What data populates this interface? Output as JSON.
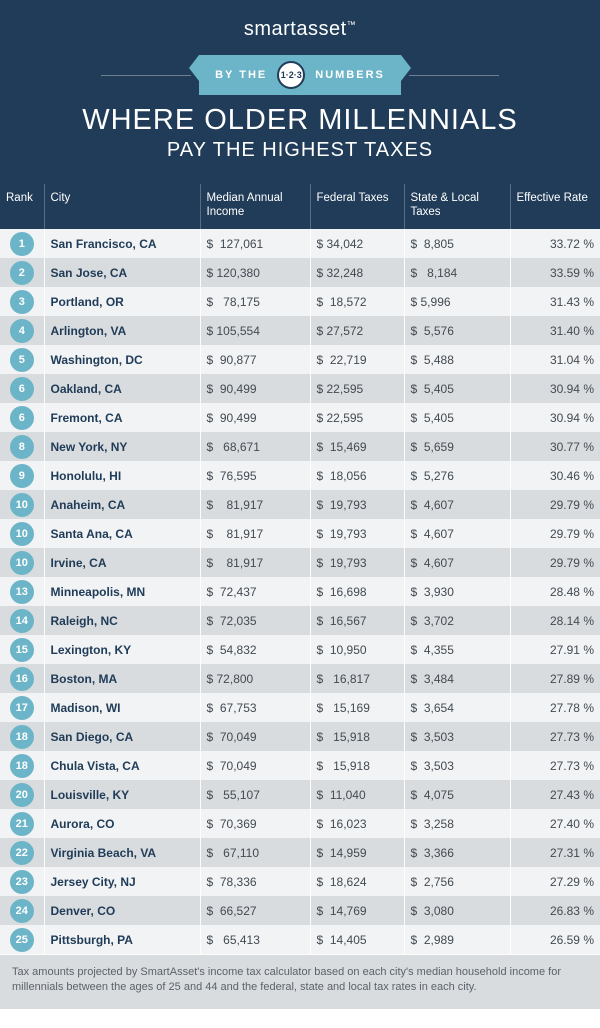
{
  "brand": {
    "part1": "smart",
    "part2": "asset",
    "tm": "™"
  },
  "ribbon": {
    "left": "BY THE",
    "circle": "1·2·3",
    "right": "NUMBERS"
  },
  "heading": {
    "title": "WHERE OLDER MILLENNIALS",
    "subtitle": "PAY THE HIGHEST TAXES"
  },
  "columns": {
    "rank": "Rank",
    "city": "City",
    "income": "Median Annual Income",
    "federal": "Federal Taxes",
    "state": "State & Local Taxes",
    "rate": "Effective Rate"
  },
  "colors": {
    "header_bg": "#203c58",
    "accent": "#6cb4c8",
    "row_odd": "#f1f3f4",
    "row_even": "#d9dcde",
    "city_text": "#203c58",
    "num_text": "#424a52"
  },
  "footnote": "Tax amounts projected by SmartAsset's income tax calculator based on each city's median household income for millennials between the ages of 25 and 44 and the federal, state and local tax rates in each city.",
  "rows": [
    {
      "rank": "1",
      "city": "San Francisco, CA",
      "income": "$  127,061",
      "federal": "$ 34,042",
      "state": "$  8,805",
      "rate": "33.72 %"
    },
    {
      "rank": "2",
      "city": "San Jose, CA",
      "income": "$ 120,380",
      "federal": "$ 32,248",
      "state": "$   8,184",
      "rate": "33.59 %"
    },
    {
      "rank": "3",
      "city": "Portland, OR",
      "income": "$   78,175",
      "federal": "$  18,572",
      "state": "$ 5,996",
      "rate": "31.43 %"
    },
    {
      "rank": "4",
      "city": "Arlington, VA",
      "income": "$ 105,554",
      "federal": "$ 27,572",
      "state": "$  5,576",
      "rate": "31.40 %"
    },
    {
      "rank": "5",
      "city": "Washington, DC",
      "income": "$  90,877",
      "federal": "$  22,719",
      "state": "$  5,488",
      "rate": "31.04 %"
    },
    {
      "rank": "6",
      "city": "Oakland, CA",
      "income": "$  90,499",
      "federal": "$ 22,595",
      "state": "$  5,405",
      "rate": "30.94 %"
    },
    {
      "rank": "6",
      "city": "Fremont, CA",
      "income": "$  90,499",
      "federal": "$ 22,595",
      "state": "$  5,405",
      "rate": "30.94 %"
    },
    {
      "rank": "8",
      "city": "New York, NY",
      "income": "$   68,671",
      "federal": "$  15,469",
      "state": "$  5,659",
      "rate": "30.77 %"
    },
    {
      "rank": "9",
      "city": "Honolulu, HI",
      "income": "$  76,595",
      "federal": "$  18,056",
      "state": "$  5,276",
      "rate": "30.46 %"
    },
    {
      "rank": "10",
      "city": "Anaheim, CA",
      "income": "$    81,917",
      "federal": "$  19,793",
      "state": "$  4,607",
      "rate": "29.79 %"
    },
    {
      "rank": "10",
      "city": "Santa Ana, CA",
      "income": "$    81,917",
      "federal": "$  19,793",
      "state": "$  4,607",
      "rate": "29.79 %"
    },
    {
      "rank": "10",
      "city": "Irvine, CA",
      "income": "$    81,917",
      "federal": "$  19,793",
      "state": "$  4,607",
      "rate": "29.79 %"
    },
    {
      "rank": "13",
      "city": "Minneapolis, MN",
      "income": "$  72,437",
      "federal": "$  16,698",
      "state": "$  3,930",
      "rate": "28.48 %"
    },
    {
      "rank": "14",
      "city": "Raleigh, NC",
      "income": "$  72,035",
      "federal": "$  16,567",
      "state": "$  3,702",
      "rate": "28.14 %"
    },
    {
      "rank": "15",
      "city": "Lexington, KY",
      "income": "$  54,832",
      "federal": "$  10,950",
      "state": "$  4,355",
      "rate": "27.91 %"
    },
    {
      "rank": "16",
      "city": "Boston, MA",
      "income": "$ 72,800",
      "federal": "$   16,817",
      "state": "$  3,484",
      "rate": "27.89 %"
    },
    {
      "rank": "17",
      "city": "Madison, WI",
      "income": "$  67,753",
      "federal": "$   15,169",
      "state": "$  3,654",
      "rate": "27.78 %"
    },
    {
      "rank": "18",
      "city": "San Diego, CA",
      "income": "$  70,049",
      "federal": "$   15,918",
      "state": "$  3,503",
      "rate": "27.73 %"
    },
    {
      "rank": "18",
      "city": "Chula Vista, CA",
      "income": "$  70,049",
      "federal": "$   15,918",
      "state": "$  3,503",
      "rate": "27.73 %"
    },
    {
      "rank": "20",
      "city": "Louisville, KY",
      "income": "$   55,107",
      "federal": "$  11,040",
      "state": "$  4,075",
      "rate": "27.43 %"
    },
    {
      "rank": "21",
      "city": "Aurora, CO",
      "income": "$  70,369",
      "federal": "$  16,023",
      "state": "$  3,258",
      "rate": "27.40 %"
    },
    {
      "rank": "22",
      "city": "Virginia Beach, VA",
      "income": "$   67,110",
      "federal": "$  14,959",
      "state": "$  3,366",
      "rate": "27.31 %"
    },
    {
      "rank": "23",
      "city": "Jersey City, NJ",
      "income": "$  78,336",
      "federal": "$  18,624",
      "state": "$  2,756",
      "rate": "27.29 %"
    },
    {
      "rank": "24",
      "city": "Denver, CO",
      "income": "$  66,527",
      "federal": "$  14,769",
      "state": "$  3,080",
      "rate": "26.83 %"
    },
    {
      "rank": "25",
      "city": "Pittsburgh, PA",
      "income": "$   65,413",
      "federal": "$  14,405",
      "state": "$  2,989",
      "rate": "26.59 %"
    }
  ]
}
